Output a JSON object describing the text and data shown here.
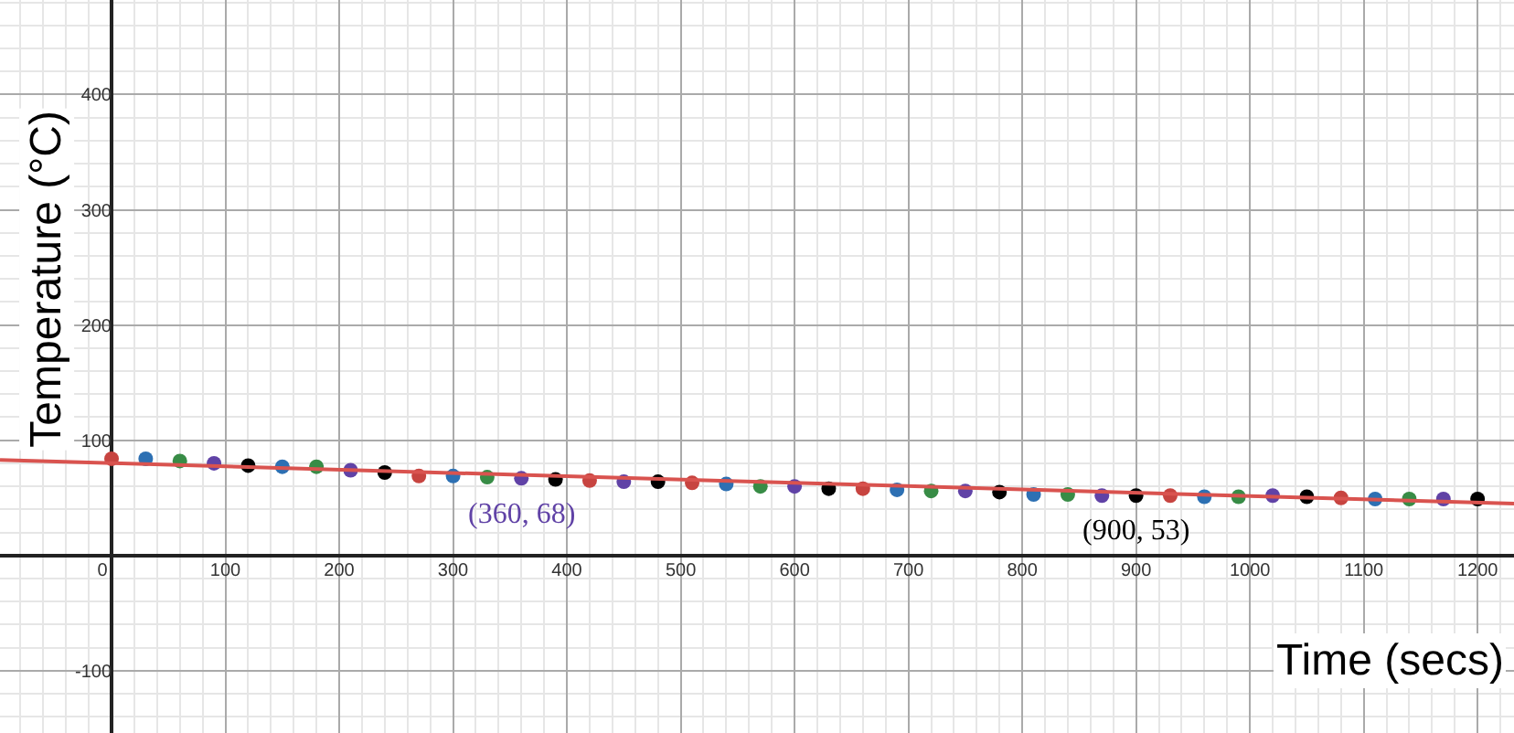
{
  "chart_data": {
    "type": "scatter",
    "xlabel": "Time (secs)",
    "ylabel": "Temperature (°C)",
    "xlim": [
      -98,
      1232
    ],
    "ylim": [
      -154,
      482
    ],
    "xticks": [
      0,
      100,
      200,
      300,
      400,
      500,
      600,
      700,
      800,
      900,
      1000,
      1100,
      1200
    ],
    "yticks": [
      -100,
      {
        "value": 0,
        "label": null
      },
      100,
      200,
      300,
      400
    ],
    "grid": true,
    "series": [
      {
        "marker": "circle",
        "x": [
          0,
          30,
          60,
          90,
          120,
          150,
          180,
          210,
          240,
          270,
          300,
          330,
          360,
          390,
          420,
          450,
          480,
          510,
          540,
          570,
          600,
          630,
          660,
          690,
          720,
          750,
          780,
          810,
          840,
          870,
          900,
          930,
          960,
          990,
          1020,
          1050,
          1080,
          1110,
          1140,
          1170,
          1200
        ],
        "values": [
          84,
          84,
          82,
          80,
          78,
          77,
          77,
          74,
          72,
          69,
          69,
          68,
          67,
          66,
          65,
          64,
          64,
          63,
          62,
          60,
          60,
          58,
          58,
          57,
          56,
          56,
          55,
          53,
          53,
          52,
          52,
          52,
          51,
          51,
          52,
          51,
          50,
          49,
          49,
          49,
          49
        ],
        "colors": [
          "#c74440",
          "#2d70b3",
          "#388c46",
          "#6042a6",
          "#000000",
          "#2d70b3",
          "#388c46",
          "#6042a6",
          "#000000",
          "#c74440",
          "#2d70b3",
          "#388c46",
          "#6042a6",
          "#000000",
          "#c74440",
          "#6042a6",
          "#000000",
          "#c74440",
          "#2d70b3",
          "#388c46",
          "#6042a6",
          "#000000",
          "#c74440",
          "#2d70b3",
          "#388c46",
          "#6042a6",
          "#000000",
          "#2d70b3",
          "#388c46",
          "#6042a6",
          "#000000",
          "#c74440",
          "#2d70b3",
          "#388c46",
          "#6042a6",
          "#000000",
          "#c74440",
          "#2d70b3",
          "#388c46",
          "#6042a6",
          "#000000"
        ]
      },
      {
        "type": "line",
        "x": [
          -98,
          1232
        ],
        "values": [
          83,
          45
        ],
        "color": "#d9534f",
        "line_style": "solid"
      }
    ],
    "annotations": [
      {
        "text": "(360, 68)",
        "x": 360,
        "y": 68
      },
      {
        "text": "(900, 53)",
        "x": 900,
        "y": 53
      }
    ]
  }
}
